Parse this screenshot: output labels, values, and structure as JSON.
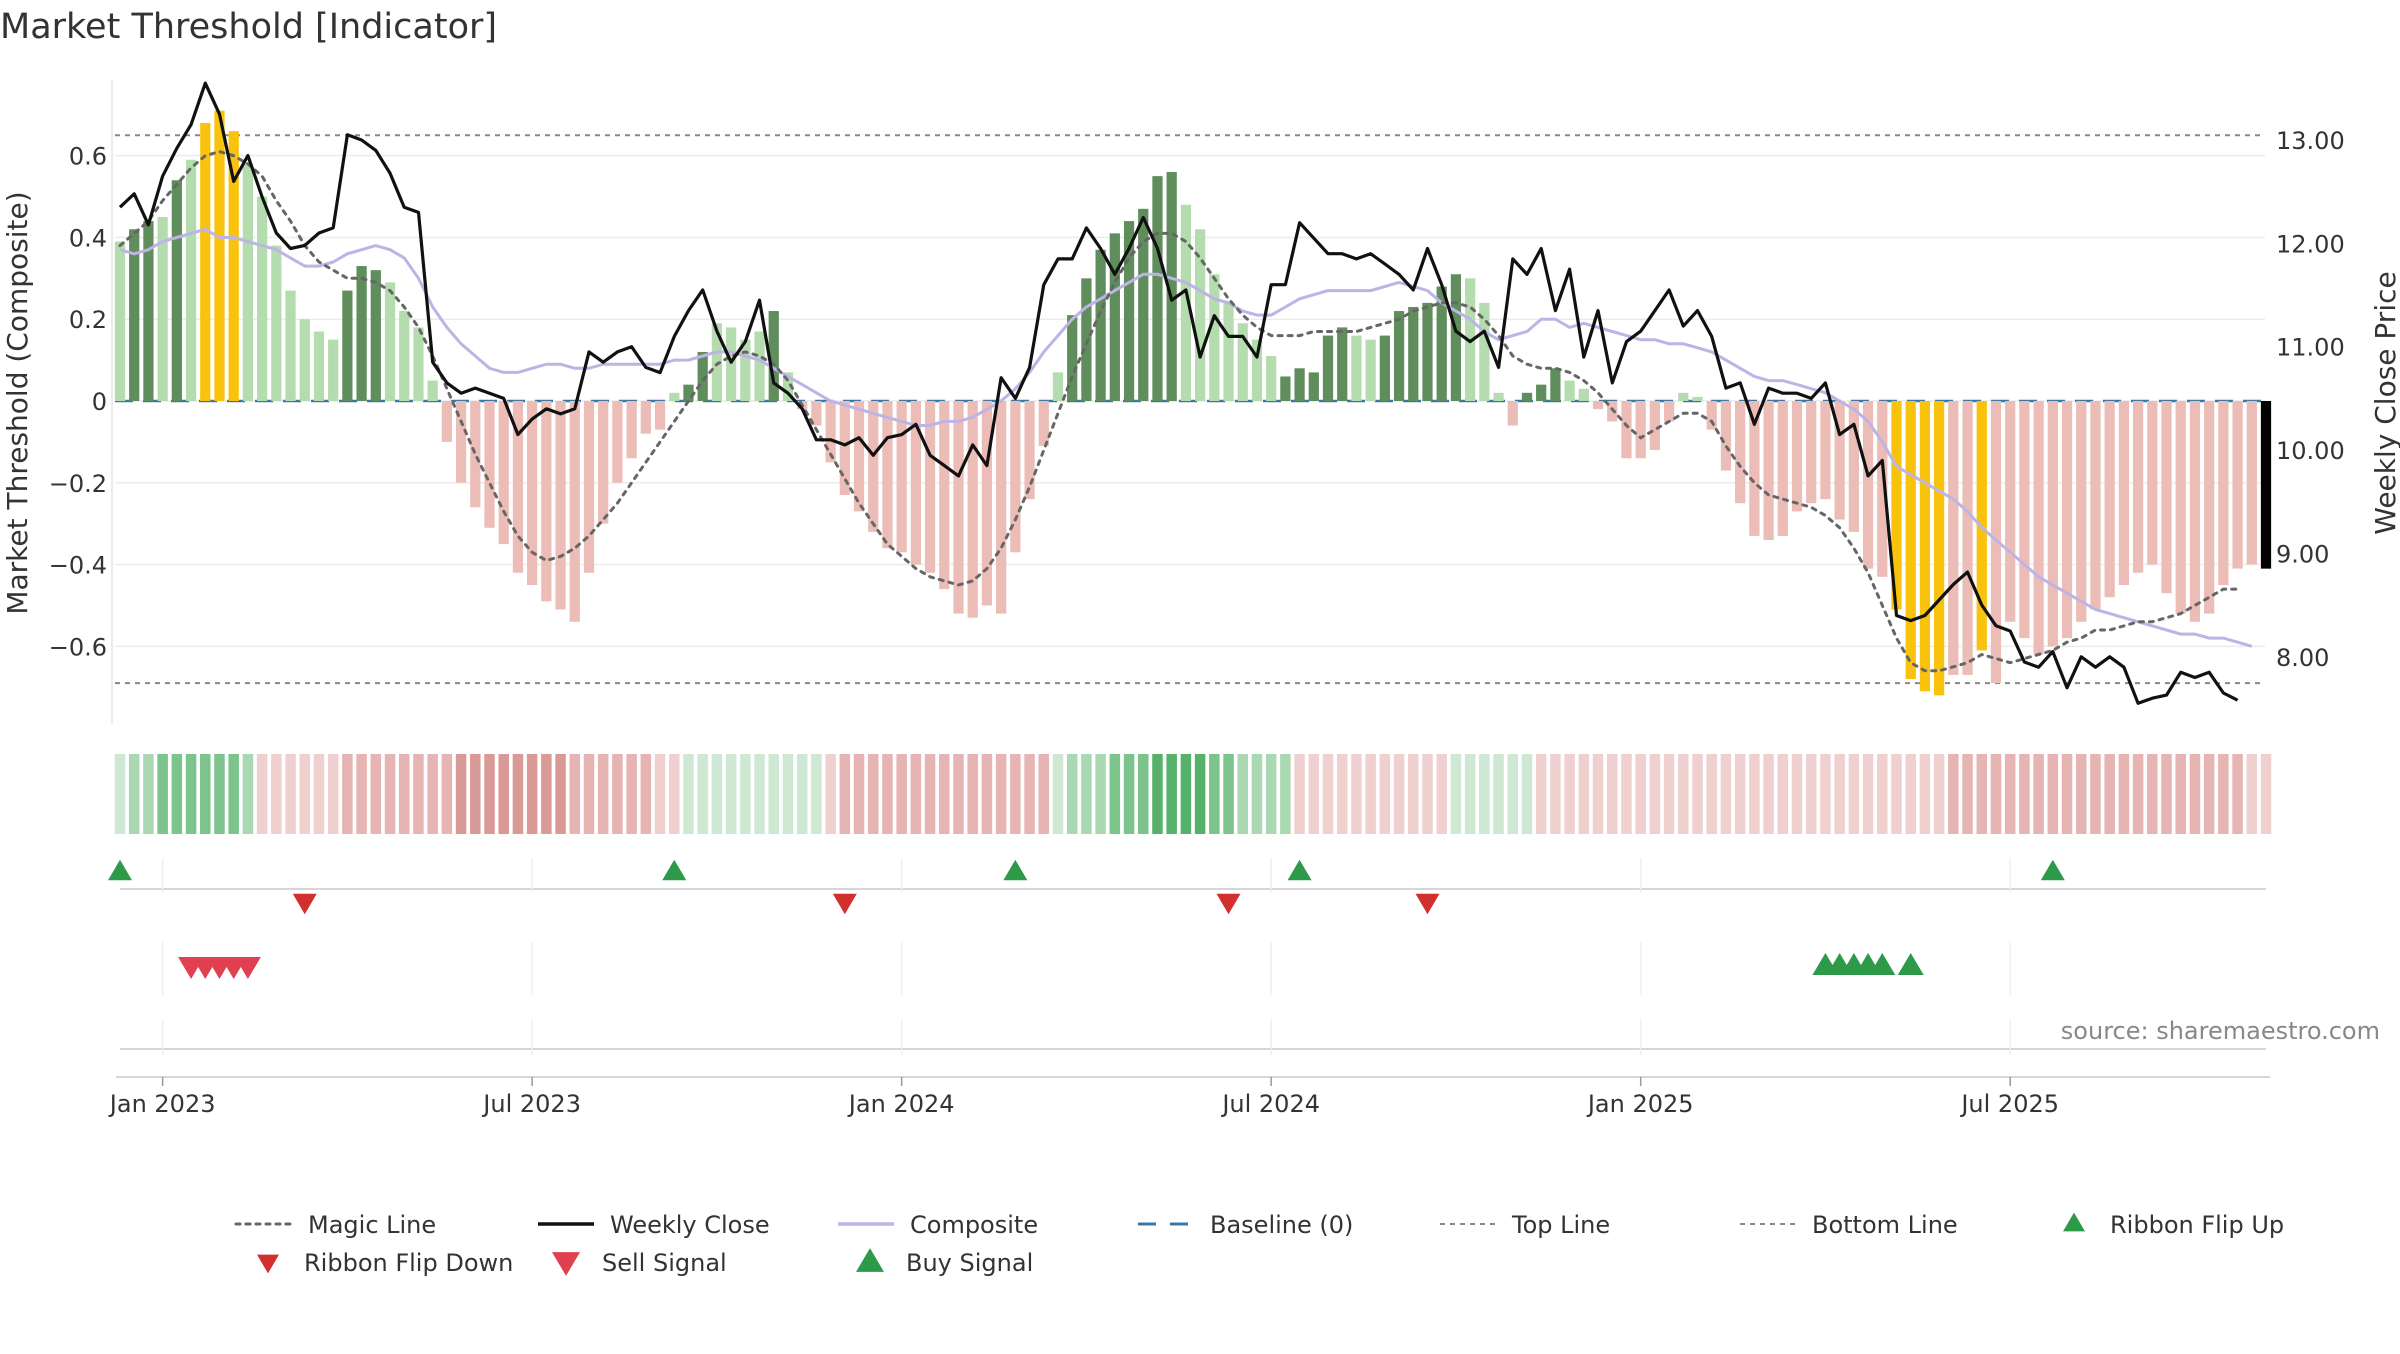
{
  "chart_data": {
    "type": "combo",
    "title": "Market Threshold [Indicator]",
    "ylabel_left": "Market Threshold (Composite)",
    "ylabel_right": "Weekly Close Price",
    "source": "source: sharemaestro.com",
    "ylim_left": [
      -0.79,
      0.79
    ],
    "ylim_right": [
      7.35,
      13.6
    ],
    "left_ticks": [
      {
        "v": 0.6,
        "label": "0.6"
      },
      {
        "v": 0.4,
        "label": "0.4"
      },
      {
        "v": 0.2,
        "label": "0.2"
      },
      {
        "v": 0,
        "label": "0"
      },
      {
        "v": -0.2,
        "label": "−0.2"
      },
      {
        "v": -0.4,
        "label": "−0.4"
      },
      {
        "v": -0.6,
        "label": "−0.6"
      }
    ],
    "right_ticks": [
      {
        "v": 13.0,
        "label": "13.00"
      },
      {
        "v": 12.0,
        "label": "12.00"
      },
      {
        "v": 11.0,
        "label": "11.00"
      },
      {
        "v": 10.0,
        "label": "10.00"
      },
      {
        "v": 9.0,
        "label": "9.00"
      },
      {
        "v": 8.0,
        "label": "8.00"
      }
    ],
    "top_line": 0.65,
    "bottom_line": -0.69,
    "x_ticks": [
      {
        "week": 3,
        "label": "Jan 2023"
      },
      {
        "week": 29,
        "label": "Jul 2023"
      },
      {
        "week": 55,
        "label": "Jan 2024"
      },
      {
        "week": 81,
        "label": "Jul 2024"
      },
      {
        "week": 107,
        "label": "Jan 2025"
      },
      {
        "week": 133,
        "label": "Jul 2025"
      }
    ],
    "composite_bars": [
      0.39,
      0.42,
      0.44,
      0.45,
      0.54,
      0.59,
      0.68,
      0.71,
      0.66,
      0.58,
      0.5,
      0.38,
      0.27,
      0.2,
      0.17,
      0.15,
      0.27,
      0.33,
      0.32,
      0.29,
      0.22,
      0.18,
      0.05,
      -0.1,
      -0.2,
      -0.26,
      -0.31,
      -0.35,
      -0.42,
      -0.45,
      -0.49,
      -0.51,
      -0.54,
      -0.42,
      -0.3,
      -0.2,
      -0.14,
      -0.08,
      -0.07,
      0.02,
      0.04,
      0.12,
      0.19,
      0.18,
      0.15,
      0.17,
      0.22,
      0.07,
      -0.02,
      -0.06,
      -0.15,
      -0.23,
      -0.27,
      -0.32,
      -0.36,
      -0.37,
      -0.4,
      -0.42,
      -0.46,
      -0.52,
      -0.53,
      -0.5,
      -0.52,
      -0.37,
      -0.24,
      -0.11,
      0.07,
      0.21,
      0.3,
      0.37,
      0.41,
      0.44,
      0.47,
      0.55,
      0.56,
      0.48,
      0.42,
      0.31,
      0.24,
      0.19,
      0.15,
      0.11,
      0.06,
      0.08,
      0.07,
      0.16,
      0.18,
      0.16,
      0.15,
      0.16,
      0.22,
      0.23,
      0.24,
      0.28,
      0.31,
      0.3,
      0.24,
      0.02,
      -0.06,
      0.02,
      0.04,
      0.08,
      0.05,
      0.03,
      -0.02,
      -0.05,
      -0.14,
      -0.14,
      -0.12,
      -0.05,
      0.02,
      0.01,
      -0.07,
      -0.17,
      -0.25,
      -0.33,
      -0.34,
      -0.33,
      -0.27,
      -0.25,
      -0.24,
      -0.29,
      -0.32,
      -0.41,
      -0.43,
      -0.51,
      -0.68,
      -0.71,
      -0.72,
      -0.67,
      -0.67,
      -0.61,
      -0.69,
      -0.54,
      -0.58,
      -0.62,
      -0.6,
      -0.58,
      -0.54,
      -0.51,
      -0.48,
      -0.45,
      -0.42,
      -0.4,
      -0.47,
      -0.52,
      -0.54,
      -0.52,
      -0.45,
      -0.41,
      -0.4,
      -0.41
    ],
    "bar_shade": [
      1,
      2,
      2,
      1,
      2,
      1,
      3,
      3,
      3,
      1,
      0,
      0,
      0,
      0,
      0,
      0,
      2,
      2,
      2,
      0,
      0,
      0,
      0,
      0,
      1,
      1,
      1,
      1,
      1,
      1,
      1,
      1,
      1,
      0,
      0,
      0,
      0,
      0,
      0,
      0,
      2,
      2,
      1,
      0,
      0,
      0,
      2,
      0,
      1,
      1,
      1,
      1,
      1,
      1,
      1,
      1,
      1,
      1,
      1,
      1,
      1,
      0,
      1,
      0,
      0,
      0,
      0,
      2,
      2,
      2,
      2,
      2,
      2,
      2,
      2,
      0,
      0,
      0,
      0,
      0,
      0,
      0,
      2,
      2,
      2,
      2,
      2,
      0,
      0,
      2,
      2,
      2,
      2,
      2,
      2,
      0,
      0,
      0,
      0,
      2,
      2,
      2,
      0,
      0,
      0,
      1,
      1,
      0,
      0,
      0,
      0,
      0,
      1,
      1,
      1,
      1,
      1,
      0,
      0,
      0,
      0,
      1,
      1,
      1,
      1,
      3,
      3,
      3,
      3,
      1,
      1,
      3,
      1,
      1,
      1,
      1,
      1,
      0,
      0,
      0,
      0,
      0,
      0,
      1,
      1,
      1,
      1,
      0,
      0,
      0,
      0
    ],
    "weekly_close": [
      12.35,
      12.48,
      12.18,
      12.65,
      12.92,
      13.15,
      13.55,
      13.25,
      12.6,
      12.85,
      12.45,
      12.1,
      11.95,
      11.98,
      12.1,
      12.15,
      13.05,
      13.0,
      12.9,
      12.68,
      12.35,
      12.3,
      10.85,
      10.65,
      10.55,
      10.6,
      10.55,
      10.5,
      10.15,
      10.3,
      10.4,
      10.35,
      10.4,
      10.95,
      10.85,
      10.95,
      11.0,
      10.8,
      10.75,
      11.1,
      11.35,
      11.55,
      11.15,
      10.85,
      11.05,
      11.45,
      10.65,
      10.55,
      10.4,
      10.1,
      10.1,
      10.05,
      10.12,
      9.95,
      10.12,
      10.15,
      10.25,
      9.95,
      9.85,
      9.75,
      10.05,
      9.85,
      10.7,
      10.5,
      10.8,
      11.6,
      11.85,
      11.85,
      12.15,
      11.95,
      11.7,
      11.95,
      12.25,
      11.95,
      11.45,
      11.55,
      10.9,
      11.3,
      11.1,
      11.1,
      10.9,
      11.6,
      11.6,
      12.2,
      12.05,
      11.9,
      11.9,
      11.85,
      11.9,
      11.8,
      11.7,
      11.55,
      11.95,
      11.6,
      11.15,
      11.05,
      11.15,
      10.8,
      11.85,
      11.7,
      11.95,
      11.35,
      11.75,
      10.9,
      11.35,
      10.65,
      11.05,
      11.15,
      11.35,
      11.55,
      11.2,
      11.35,
      11.1,
      10.6,
      10.65,
      10.25,
      10.6,
      10.55,
      10.55,
      10.5,
      10.65,
      10.15,
      10.25,
      9.75,
      9.9,
      8.4,
      8.35,
      8.4,
      8.55,
      8.7,
      8.82,
      8.5,
      8.3,
      8.25,
      7.95,
      7.9,
      8.05,
      7.7,
      8.0,
      7.9,
      8.0,
      7.9,
      7.55,
      7.6,
      7.63,
      7.85,
      7.8,
      7.85,
      7.65,
      7.58
    ],
    "magic_line": [
      0.38,
      0.41,
      0.44,
      0.49,
      0.53,
      0.57,
      0.6,
      0.61,
      0.6,
      0.58,
      0.55,
      0.49,
      0.44,
      0.38,
      0.34,
      0.32,
      0.3,
      0.3,
      0.29,
      0.27,
      0.23,
      0.18,
      0.11,
      0.03,
      -0.05,
      -0.13,
      -0.2,
      -0.27,
      -0.33,
      -0.37,
      -0.39,
      -0.38,
      -0.36,
      -0.33,
      -0.29,
      -0.25,
      -0.2,
      -0.15,
      -0.1,
      -0.05,
      0.0,
      0.05,
      0.09,
      0.11,
      0.12,
      0.11,
      0.09,
      0.05,
      -0.01,
      -0.07,
      -0.13,
      -0.19,
      -0.25,
      -0.3,
      -0.35,
      -0.38,
      -0.41,
      -0.43,
      -0.44,
      -0.45,
      -0.44,
      -0.41,
      -0.36,
      -0.29,
      -0.21,
      -0.12,
      -0.03,
      0.06,
      0.14,
      0.22,
      0.29,
      0.35,
      0.39,
      0.41,
      0.41,
      0.39,
      0.35,
      0.3,
      0.25,
      0.21,
      0.18,
      0.16,
      0.16,
      0.16,
      0.17,
      0.17,
      0.17,
      0.17,
      0.18,
      0.19,
      0.2,
      0.22,
      0.23,
      0.24,
      0.24,
      0.23,
      0.2,
      0.16,
      0.11,
      0.09,
      0.08,
      0.08,
      0.07,
      0.05,
      0.02,
      -0.02,
      -0.06,
      -0.09,
      -0.07,
      -0.05,
      -0.03,
      -0.03,
      -0.05,
      -0.11,
      -0.16,
      -0.2,
      -0.23,
      -0.24,
      -0.25,
      -0.26,
      -0.28,
      -0.31,
      -0.36,
      -0.42,
      -0.5,
      -0.58,
      -0.64,
      -0.66,
      -0.66,
      -0.65,
      -0.64,
      -0.62,
      -0.63,
      -0.64,
      -0.63,
      -0.62,
      -0.61,
      -0.59,
      -0.58,
      -0.56,
      -0.56,
      -0.55,
      -0.54,
      -0.54,
      -0.53,
      -0.52,
      -0.5,
      -0.48,
      -0.46,
      -0.46
    ],
    "composite_line": [
      0.37,
      0.36,
      0.37,
      0.39,
      0.4,
      0.41,
      0.42,
      0.4,
      0.4,
      0.39,
      0.38,
      0.37,
      0.35,
      0.33,
      0.33,
      0.34,
      0.36,
      0.37,
      0.38,
      0.37,
      0.35,
      0.3,
      0.23,
      0.18,
      0.14,
      0.11,
      0.08,
      0.07,
      0.07,
      0.08,
      0.09,
      0.09,
      0.08,
      0.08,
      0.09,
      0.09,
      0.09,
      0.09,
      0.09,
      0.1,
      0.1,
      0.11,
      0.12,
      0.12,
      0.11,
      0.1,
      0.08,
      0.06,
      0.04,
      0.02,
      0.0,
      -0.01,
      -0.02,
      -0.03,
      -0.04,
      -0.05,
      -0.06,
      -0.06,
      -0.05,
      -0.05,
      -0.04,
      -0.02,
      0.0,
      0.03,
      0.07,
      0.12,
      0.16,
      0.2,
      0.23,
      0.25,
      0.27,
      0.29,
      0.31,
      0.31,
      0.3,
      0.29,
      0.27,
      0.25,
      0.24,
      0.22,
      0.21,
      0.21,
      0.23,
      0.25,
      0.26,
      0.27,
      0.27,
      0.27,
      0.27,
      0.28,
      0.29,
      0.28,
      0.27,
      0.24,
      0.22,
      0.2,
      0.17,
      0.15,
      0.16,
      0.17,
      0.2,
      0.2,
      0.18,
      0.19,
      0.18,
      0.17,
      0.16,
      0.15,
      0.15,
      0.14,
      0.14,
      0.13,
      0.12,
      0.1,
      0.08,
      0.06,
      0.05,
      0.05,
      0.04,
      0.03,
      0.02,
      0.0,
      -0.02,
      -0.05,
      -0.1,
      -0.16,
      -0.18,
      -0.2,
      -0.22,
      -0.24,
      -0.27,
      -0.31,
      -0.34,
      -0.37,
      -0.4,
      -0.43,
      -0.45,
      -0.47,
      -0.49,
      -0.51,
      -0.52,
      -0.53,
      -0.54,
      -0.55,
      -0.56,
      -0.57,
      -0.57,
      -0.58,
      -0.58,
      -0.59,
      -0.6
    ],
    "ribbon_levels": [
      1,
      2,
      2,
      3,
      3,
      3,
      3,
      3,
      3,
      2,
      -1,
      -1,
      -1,
      -1,
      -1,
      -1,
      -2,
      -2,
      -2,
      -2,
      -2,
      -2,
      -2,
      -2,
      -3,
      -3,
      -3,
      -3,
      -3,
      -3,
      -3,
      -3,
      -2,
      -2,
      -2,
      -2,
      -2,
      -2,
      -1,
      -1,
      1,
      1,
      1,
      1,
      1,
      1,
      1,
      1,
      1,
      1,
      -1,
      -2,
      -2,
      -2,
      -2,
      -2,
      -2,
      -2,
      -2,
      -2,
      -2,
      -2,
      -2,
      -2,
      -2,
      -2,
      1,
      2,
      2,
      2,
      3,
      3,
      3,
      4,
      4,
      4,
      4,
      3,
      3,
      2,
      2,
      2,
      2,
      -1,
      -1,
      -1,
      -1,
      -1,
      -1,
      -1,
      -1,
      -1,
      -1,
      -1,
      1,
      1,
      1,
      1,
      1,
      1,
      -1,
      -1,
      -1,
      -1,
      -1,
      -1,
      -1,
      -1,
      -1,
      -1,
      -1,
      -1,
      -1,
      -1,
      -1,
      -1,
      -1,
      -1,
      -1,
      -1,
      -1,
      -1,
      -1,
      -1,
      -1,
      -1,
      -1,
      -1,
      -1,
      -2,
      -2,
      -2,
      -2,
      -2,
      -2,
      -2,
      -2,
      -2,
      -2,
      -2,
      -2,
      -2,
      -2,
      -2,
      -2,
      -2,
      -2,
      -2,
      -2,
      -2,
      -1,
      -1
    ],
    "ribbon_flip_up_weeks": [
      0,
      39,
      63,
      83,
      136
    ],
    "ribbon_flip_down_weeks": [
      13,
      51,
      78,
      92
    ],
    "sell_signal_weeks": [
      5,
      6,
      7,
      8,
      9
    ],
    "buy_signal_weeks": [
      120,
      121,
      122,
      123,
      124,
      126
    ],
    "legend": [
      {
        "key": "magic",
        "label": "Magic Line"
      },
      {
        "key": "close",
        "label": "Weekly Close"
      },
      {
        "key": "composite",
        "label": "Composite"
      },
      {
        "key": "baseline",
        "label": "Baseline (0)"
      },
      {
        "key": "top",
        "label": "Top Line"
      },
      {
        "key": "bottom",
        "label": "Bottom Line"
      },
      {
        "key": "flipup",
        "label": "Ribbon Flip Up"
      },
      {
        "key": "flipdown",
        "label": "Ribbon Flip Down"
      },
      {
        "key": "sell",
        "label": "Sell Signal"
      },
      {
        "key": "buy",
        "label": "Buy Signal"
      }
    ],
    "colors": {
      "pos_shades": [
        "#b5dcae",
        "#b5dcae",
        "#5f8d5b",
        "#f9c20d"
      ],
      "neg_shades": [
        "#ecbcb7",
        "#ecbcb7",
        "#a97b75",
        "#f9c20d"
      ],
      "close": "#111111",
      "magic": "#666666",
      "composite": "#bdb4e6",
      "baseline": "#3b78a5",
      "refline": "#888888",
      "flip_up": "#2c9a48",
      "flip_down": "#d22f2f",
      "sell": "#e14050",
      "buy": "#2c9a48",
      "ribbon_pos": [
        "#cfe8d3",
        "#a9d8b2",
        "#7cc48c",
        "#56b26a",
        "#3fa455"
      ],
      "ribbon_neg": [
        "#f0d0cf",
        "#e6b5b3",
        "#d99a97",
        "#cd7a76"
      ]
    }
  }
}
